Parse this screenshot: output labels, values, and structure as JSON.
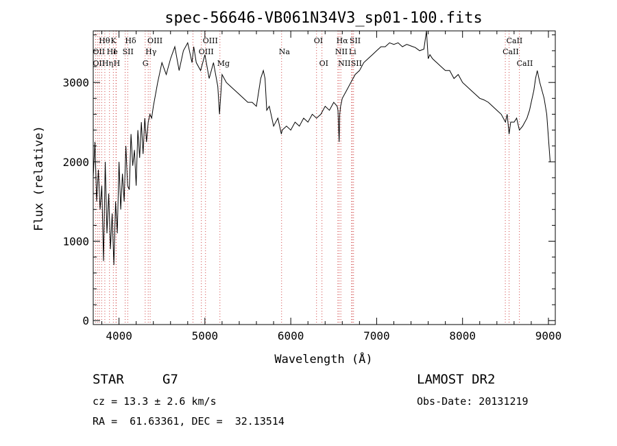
{
  "chart_data": {
    "type": "line",
    "title": "spec-56646-VB061N34V3_sp01-100.fits",
    "xlabel": "Wavelength (Å)",
    "ylabel": "Flux (relative)",
    "xlim": [
      3700,
      9080
    ],
    "ylim": [
      -50,
      3650
    ],
    "x_ticks": [
      4000,
      5000,
      6000,
      7000,
      8000,
      9000
    ],
    "y_ticks": [
      0,
      1000,
      2000,
      3000
    ],
    "x_tick_labels": [
      "4000",
      "5000",
      "6000",
      "7000",
      "8000",
      "9000"
    ],
    "y_tick_labels": [
      "0",
      "1000",
      "2000",
      "3000"
    ],
    "grid": false,
    "series": [
      {
        "x": [
          3700,
          3720,
          3740,
          3760,
          3780,
          3800,
          3820,
          3840,
          3860,
          3880,
          3900,
          3920,
          3940,
          3960,
          3980,
          4000,
          4020,
          4040,
          4060,
          4080,
          4100,
          4120,
          4140,
          4160,
          4180,
          4200,
          4220,
          4240,
          4260,
          4280,
          4300,
          4320,
          4340,
          4360,
          4380,
          4400,
          4450,
          4500,
          4550,
          4600,
          4650,
          4700,
          4750,
          4800,
          4850,
          4870,
          4900,
          4950,
          5000,
          5050,
          5100,
          5150,
          5170,
          5200,
          5250,
          5300,
          5350,
          5400,
          5450,
          5500,
          5550,
          5600,
          5650,
          5680,
          5700,
          5720,
          5750,
          5780,
          5800,
          5850,
          5890,
          5900,
          5950,
          6000,
          6050,
          6100,
          6150,
          6200,
          6250,
          6300,
          6350,
          6400,
          6450,
          6500,
          6540,
          6550,
          6563,
          6570,
          6580,
          6600,
          6650,
          6700,
          6750,
          6800,
          6850,
          6900,
          6950,
          7000,
          7050,
          7100,
          7150,
          7200,
          7250,
          7300,
          7350,
          7400,
          7450,
          7500,
          7550,
          7580,
          7600,
          7620,
          7650,
          7700,
          7750,
          7800,
          7850,
          7900,
          7950,
          8000,
          8050,
          8100,
          8150,
          8200,
          8250,
          8300,
          8350,
          8400,
          8450,
          8500,
          8520,
          8542,
          8560,
          8600,
          8630,
          8662,
          8700,
          8750,
          8780,
          8800,
          8830,
          8850,
          8870,
          8900,
          8950,
          8980,
          9000,
          9020
        ],
        "y": [
          1800,
          2250,
          1500,
          1900,
          1400,
          1700,
          750,
          2000,
          1100,
          1600,
          900,
          1350,
          700,
          1500,
          1100,
          2000,
          1400,
          1850,
          1500,
          2200,
          1700,
          1650,
          2350,
          1950,
          2150,
          1700,
          2400,
          2050,
          2500,
          2100,
          2550,
          2250,
          2500,
          2600,
          2550,
          2700,
          3000,
          3250,
          3100,
          3300,
          3450,
          3150,
          3400,
          3500,
          3250,
          3450,
          3250,
          3150,
          3350,
          3050,
          3250,
          2950,
          2600,
          3100,
          3000,
          2950,
          2900,
          2850,
          2800,
          2750,
          2750,
          2700,
          3050,
          3150,
          3050,
          2650,
          2700,
          2550,
          2450,
          2550,
          2350,
          2400,
          2450,
          2400,
          2500,
          2450,
          2550,
          2500,
          2600,
          2550,
          2600,
          2700,
          2650,
          2750,
          2700,
          2650,
          2250,
          2600,
          2700,
          2800,
          2900,
          3000,
          3100,
          3150,
          3250,
          3300,
          3350,
          3400,
          3450,
          3450,
          3500,
          3480,
          3500,
          3450,
          3480,
          3460,
          3440,
          3400,
          3420,
          3650,
          3300,
          3350,
          3300,
          3250,
          3200,
          3150,
          3150,
          3050,
          3100,
          3000,
          2950,
          2900,
          2850,
          2800,
          2780,
          2750,
          2700,
          2650,
          2600,
          2500,
          2600,
          2350,
          2500,
          2500,
          2550,
          2400,
          2450,
          2550,
          2650,
          2750,
          2900,
          3050,
          3150,
          3000,
          2800,
          2600,
          2300,
          2000
        ],
        "color": "#000000"
      }
    ],
    "line_marks": [
      {
        "label": "Hθ",
        "wavelength": 3798,
        "tier": 1
      },
      {
        "label": "K",
        "wavelength": 3934,
        "tier": 1
      },
      {
        "label": "Hδ",
        "wavelength": 4102,
        "tier": 1
      },
      {
        "label": "OIII",
        "wavelength": 4363,
        "tier": 1
      },
      {
        "label": "OIII",
        "wavelength": 5007,
        "tier": 1
      },
      {
        "label": "OI",
        "wavelength": 6300,
        "tier": 1
      },
      {
        "label": "Hα",
        "wavelength": 6563,
        "tier": 1
      },
      {
        "label": "SII",
        "wavelength": 6716,
        "tier": 1
      },
      {
        "label": "CaII",
        "wavelength": 8542,
        "tier": 1
      },
      {
        "label": "OII",
        "wavelength": 3727,
        "tier": 2
      },
      {
        "label": "He",
        "wavelength": 3889,
        "tier": 2
      },
      {
        "label": "I",
        "wavelength": 3965,
        "tier": 2
      },
      {
        "label": "SII",
        "wavelength": 4072,
        "tier": 2
      },
      {
        "label": "Hγ",
        "wavelength": 4340,
        "tier": 2
      },
      {
        "label": "OIII",
        "wavelength": 4959,
        "tier": 2
      },
      {
        "label": "Na",
        "wavelength": 5893,
        "tier": 2
      },
      {
        "label": "NII",
        "wavelength": 6548,
        "tier": 2
      },
      {
        "label": "Li",
        "wavelength": 6708,
        "tier": 2
      },
      {
        "label": "CaII",
        "wavelength": 8498,
        "tier": 2
      },
      {
        "label": "OII",
        "wavelength": 3727,
        "tier": 3
      },
      {
        "label": "Hη",
        "wavelength": 3835,
        "tier": 3
      },
      {
        "label": "H",
        "wavelength": 3968,
        "tier": 3
      },
      {
        "label": "G",
        "wavelength": 4305,
        "tier": 3
      },
      {
        "label": "Mg",
        "wavelength": 5175,
        "tier": 3
      },
      {
        "label": "OI",
        "wavelength": 6363,
        "tier": 3
      },
      {
        "label": "NII",
        "wavelength": 6583,
        "tier": 3
      },
      {
        "label": "SII",
        "wavelength": 6731,
        "tier": 3
      },
      {
        "label": "CaII",
        "wavelength": 8662,
        "tier": 3
      }
    ],
    "marker_wavelengths": [
      3727,
      3750,
      3771,
      3798,
      3835,
      3889,
      3934,
      3965,
      3968,
      4072,
      4102,
      4305,
      4340,
      4363,
      4861,
      4959,
      5007,
      5175,
      5893,
      6300,
      6363,
      6548,
      6563,
      6583,
      6708,
      6716,
      6731,
      8498,
      8542,
      8662
    ]
  },
  "info": {
    "object_class": "STAR",
    "subclass": "G7",
    "survey": "LAMOST DR2",
    "cz": "cz = 13.3 ± 2.6 km/s",
    "obs_date": "Obs-Date: 20131219",
    "coords": "RA =  61.63361, DEC =  32.13514"
  }
}
